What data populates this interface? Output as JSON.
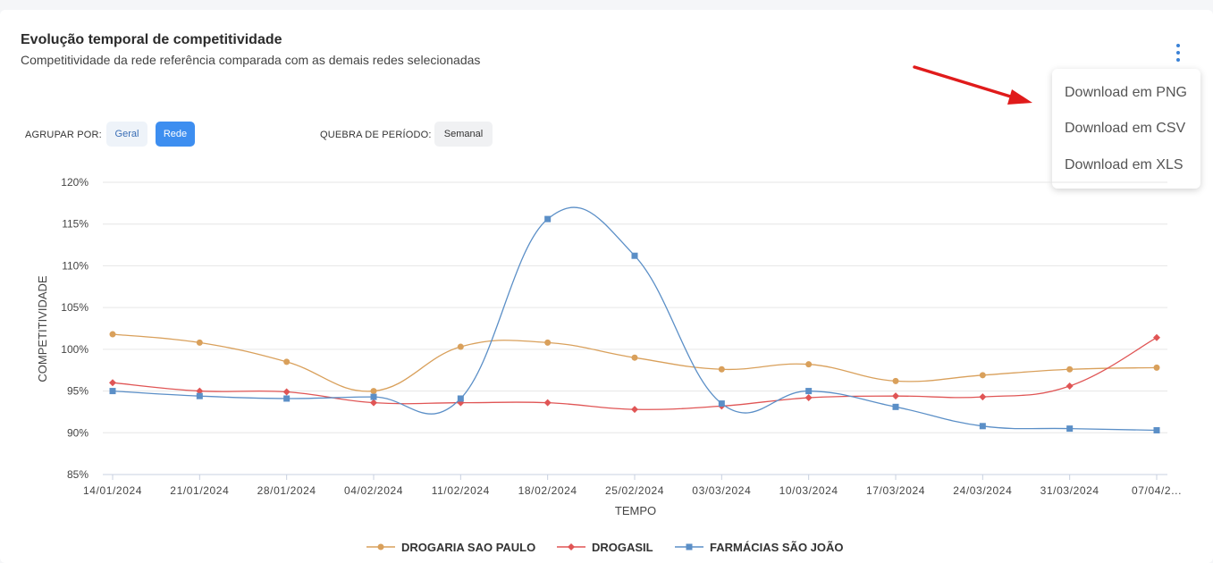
{
  "header": {
    "title": "Evolução temporal de competitividade",
    "subtitle": "Competitividade da rede referência comparada com as demais redes selecionadas"
  },
  "menu": {
    "items": [
      "Download em PNG",
      "Download em CSV",
      "Download em XLS"
    ]
  },
  "controls": {
    "group_label": "AGRUPAR POR:",
    "group_options": [
      "Geral",
      "Rede"
    ],
    "group_selected": "Rede",
    "period_label": "QUEBRA DE PERÍODO:",
    "period_value": "Semanal"
  },
  "annotation_arrow_color": "#e01b1b",
  "chart_data": {
    "type": "line",
    "xlabel": "TEMPO",
    "ylabel": "COMPETITIVIDADE",
    "ylim": [
      85,
      120
    ],
    "yticks": [
      "85%",
      "90%",
      "95%",
      "100%",
      "105%",
      "110%",
      "115%",
      "120%"
    ],
    "categories": [
      "14/01/2024",
      "21/01/2024",
      "28/01/2024",
      "04/02/2024",
      "11/02/2024",
      "18/02/2024",
      "25/02/2024",
      "03/03/2024",
      "10/03/2024",
      "17/03/2024",
      "24/03/2024",
      "31/03/2024",
      "07/04/2..."
    ],
    "grid": true,
    "legend_position": "bottom",
    "series": [
      {
        "name": "DROGARIA SAO PAULO",
        "color": "#d9a05b",
        "marker": "circle",
        "values": [
          101.8,
          100.8,
          98.5,
          95.0,
          100.3,
          100.8,
          99.0,
          97.6,
          98.2,
          96.2,
          96.9,
          97.6,
          97.8
        ]
      },
      {
        "name": "DROGASIL",
        "color": "#e05555",
        "marker": "diamond",
        "values": [
          96.0,
          95.0,
          94.9,
          93.6,
          93.6,
          93.6,
          92.8,
          93.2,
          94.2,
          94.4,
          94.3,
          95.6,
          101.4
        ]
      },
      {
        "name": "FARMÁCIAS SÃO JOÃO",
        "color": "#5b8fc7",
        "marker": "square",
        "values": [
          95.0,
          94.4,
          94.1,
          94.3,
          94.1,
          115.6,
          111.2,
          93.5,
          95.0,
          93.1,
          90.8,
          90.5,
          90.3
        ]
      }
    ]
  }
}
